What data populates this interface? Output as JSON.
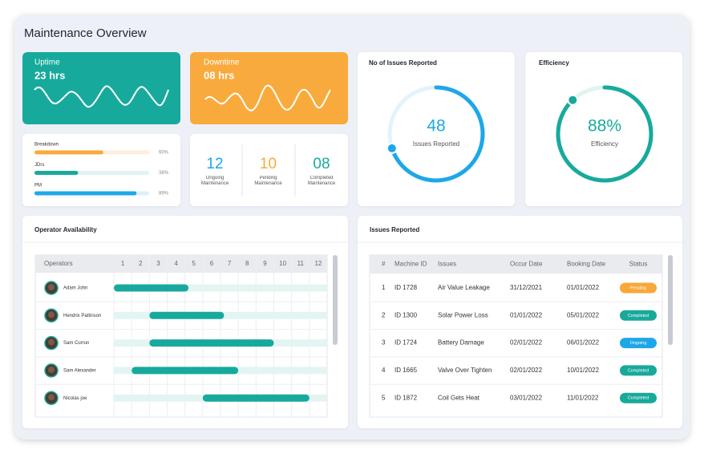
{
  "header": {
    "title": "Maintenance Overview"
  },
  "uptime": {
    "label": "Uptime",
    "value": "23 hrs"
  },
  "downtime": {
    "label": "Downtime",
    "value": "08 hrs"
  },
  "progress": [
    {
      "name": "Breakdown",
      "value": 60,
      "label": "60%",
      "color": "#f8ab3c",
      "track": "#fdefdc"
    },
    {
      "name": "JDrs",
      "value": 38,
      "label": "38%",
      "color": "#17aa9c",
      "track": "#dff3f1"
    },
    {
      "name": "PM",
      "value": 89,
      "label": "89%",
      "color": "#1ea7e8",
      "track": "#ddf0f9"
    }
  ],
  "counts": [
    {
      "value": "12",
      "label": "Ongoing Maintenance",
      "color": "#1ea7e8"
    },
    {
      "value": "10",
      "label": "Pending Maintenance",
      "color": "#f8ab3c"
    },
    {
      "value": "08",
      "label": "Completed Maintenance",
      "color": "#17aa9c"
    }
  ],
  "issues_card": {
    "title": "No of Issues Reported",
    "value": "48",
    "caption": "Issues Reported",
    "color": "#1ea7e8"
  },
  "efficiency": {
    "title": "Efficiency",
    "value": 88,
    "label": "88%",
    "caption": "Efficiency",
    "color": "#17aa9c"
  },
  "operators": {
    "title": "Operator Availability",
    "header": "Operators",
    "hours": [
      1,
      2,
      3,
      4,
      5,
      6,
      7,
      8,
      9,
      10,
      11,
      12
    ],
    "rows": [
      {
        "name": "Adam John",
        "start": 0,
        "end": 4.2
      },
      {
        "name": "Hendrix Pattinson",
        "start": 2,
        "end": 6.2
      },
      {
        "name": "Sam Currun",
        "start": 2,
        "end": 9
      },
      {
        "name": "Sam Alexander",
        "start": 1,
        "end": 7
      },
      {
        "name": "Nicolas joe",
        "start": 5,
        "end": 11
      }
    ]
  },
  "issues_table": {
    "title": "Issues Reported",
    "columns": [
      "#",
      "Machine ID",
      "Issues",
      "Occur Date",
      "Booking Date",
      "Status"
    ],
    "rows": [
      [
        "1",
        "ID 1728",
        "Air Value Leakage",
        "31/12/2021",
        "01/01/2022",
        "Pending"
      ],
      [
        "2",
        "ID 1300",
        "Solar Power Loss",
        "01/01/2022",
        "05/01/2022",
        "Completed"
      ],
      [
        "3",
        "ID 1724",
        "Battery Damage",
        "02/01/2022",
        "06/01/2022",
        "Ongoing"
      ],
      [
        "4",
        "ID 1665",
        "Valve Over Tighten",
        "02/01/2022",
        "10/01/2022",
        "Completed"
      ],
      [
        "5",
        "ID 1872",
        "Coil Gets Heat",
        "03/01/2022",
        "11/01/2022",
        "Completed"
      ]
    ],
    "status_colors": {
      "Pending": "#f7a839",
      "Completed": "#17a99a",
      "Ongoing": "#1ea7e8"
    }
  }
}
